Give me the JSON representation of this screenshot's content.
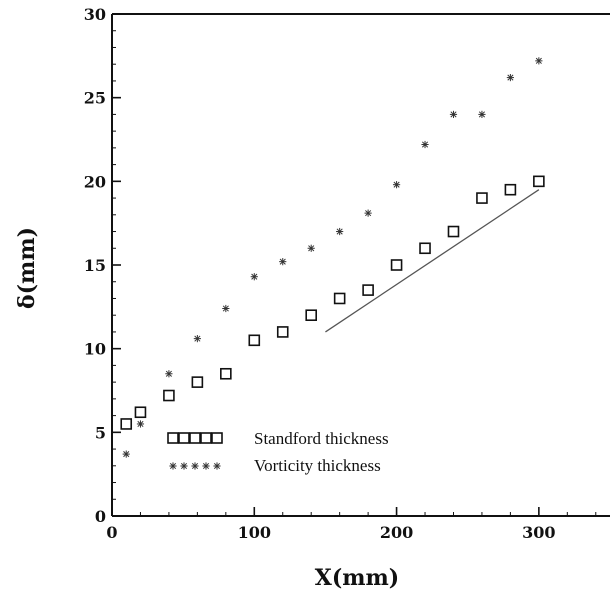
{
  "chart_data": {
    "type": "scatter",
    "xlabel": "X(mm)",
    "ylabel": "δ(mm)",
    "xlim": [
      0,
      350
    ],
    "ylim": [
      0,
      30
    ],
    "xticks": [
      0,
      100,
      200,
      300
    ],
    "yticks": [
      0,
      5,
      10,
      15,
      20,
      25,
      30
    ],
    "grid": false,
    "legend_placement": "lower-left",
    "series": [
      {
        "name": "Standford thickness",
        "marker": "square",
        "x": [
          10,
          20,
          40,
          60,
          80,
          100,
          120,
          140,
          160,
          180,
          200,
          220,
          240,
          260,
          280,
          300
        ],
        "y": [
          5.5,
          6.2,
          7.2,
          8.0,
          8.5,
          10.5,
          11.0,
          12.0,
          13.0,
          13.5,
          15.0,
          16.0,
          17.0,
          19.0,
          19.5,
          20.0
        ]
      },
      {
        "name": "Vorticity thickness",
        "marker": "star",
        "x": [
          10,
          20,
          40,
          60,
          80,
          100,
          120,
          140,
          160,
          180,
          200,
          220,
          240,
          260,
          280,
          300
        ],
        "y": [
          3.7,
          5.5,
          8.5,
          10.6,
          12.4,
          14.3,
          15.2,
          16.0,
          17.0,
          18.1,
          19.8,
          22.2,
          24.0,
          24.0,
          26.2,
          27.2
        ]
      }
    ],
    "reference_line": {
      "x": [
        150,
        300
      ],
      "y": [
        11.0,
        19.5
      ],
      "color": "#555555"
    }
  },
  "colors": {
    "axis": "#111111",
    "marker": "#111111",
    "reference_line": "#555555"
  }
}
